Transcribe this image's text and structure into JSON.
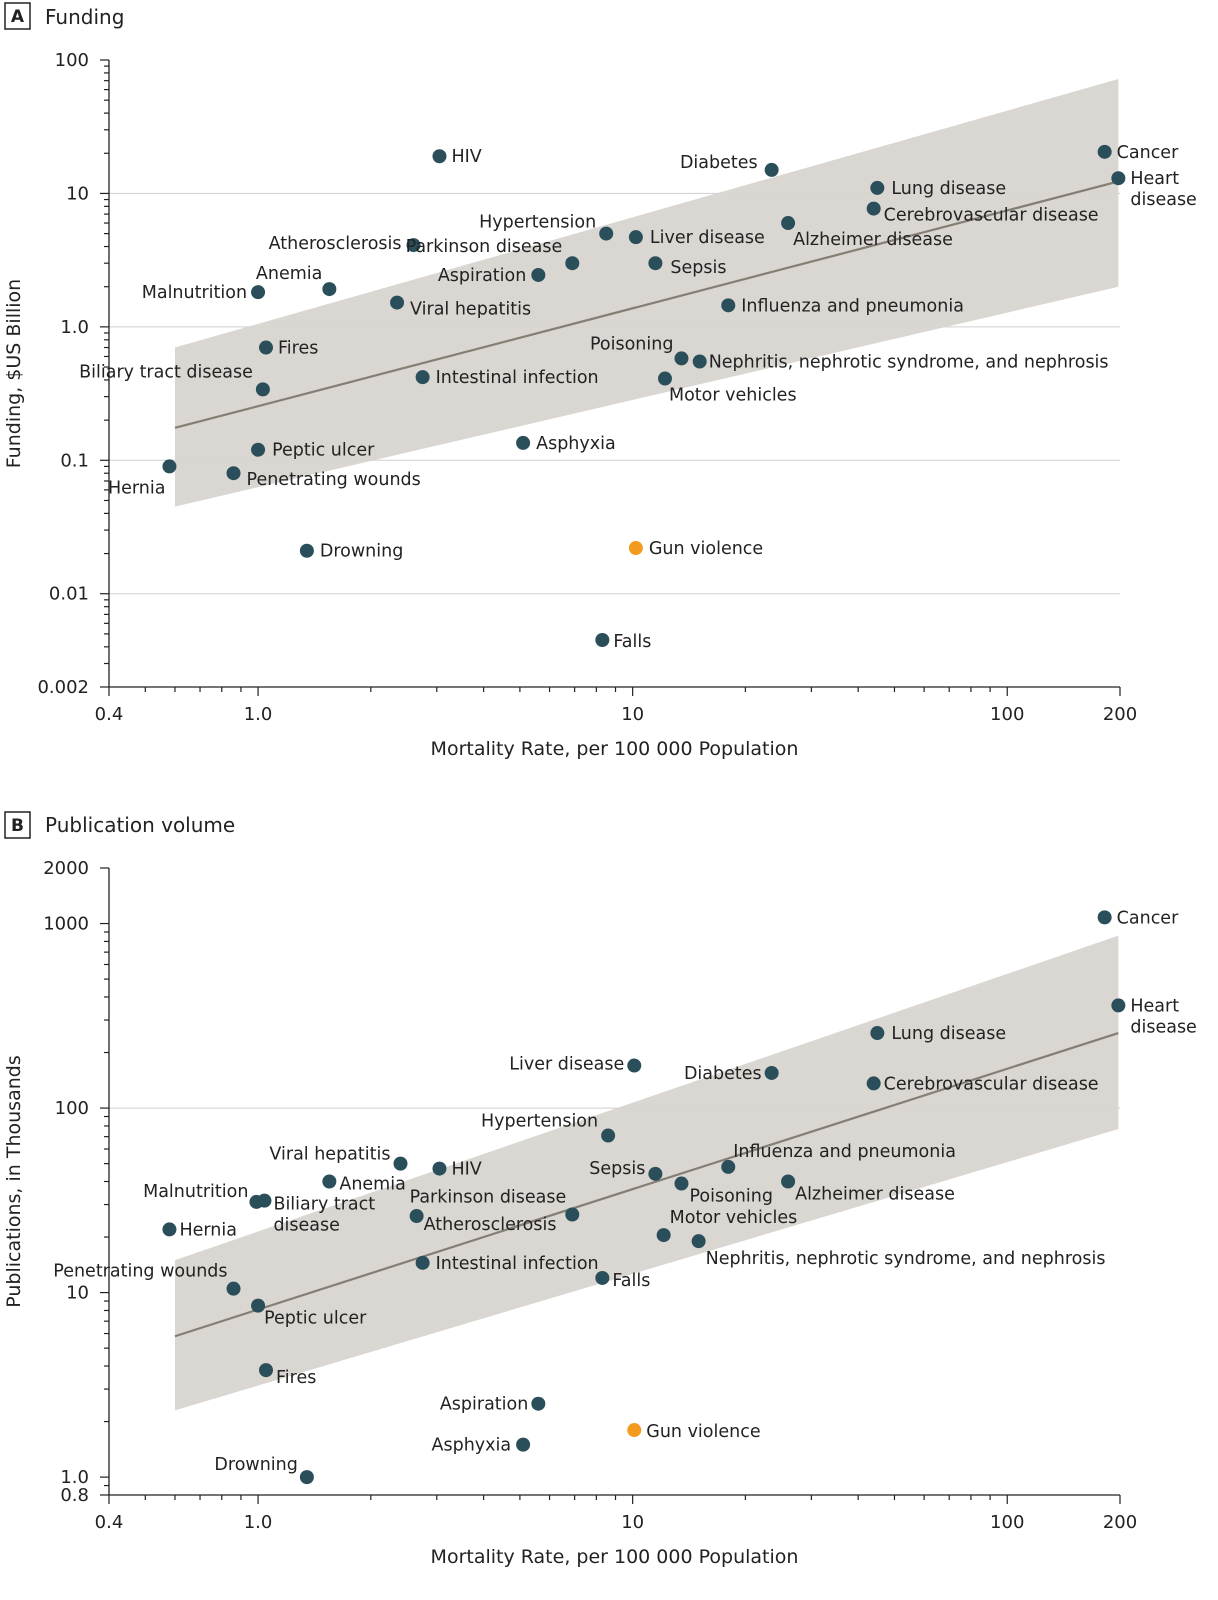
{
  "colors": {
    "point": "#2a4e5a",
    "highlight": "#f39b1f",
    "trend": "#857e74",
    "band": "#d8d4cf",
    "grid": "#cfcfcf",
    "axis": "#222222"
  },
  "chart_data": [
    {
      "type": "scatter",
      "panel_letter": "A",
      "title": "Funding",
      "xlabel": "Mortality Rate, per 100 000 Population",
      "ylabel": "Funding, $US Billion",
      "x_scale": "log",
      "y_scale": "log",
      "xlim": [
        0.4,
        200
      ],
      "ylim": [
        0.002,
        100
      ],
      "x_ticks": [
        0.4,
        1,
        10,
        100,
        200
      ],
      "x_tick_labels": [
        "0.4",
        "1.0",
        "10",
        "100",
        "200"
      ],
      "y_ticks": [
        0.002,
        0.01,
        0.1,
        1,
        10,
        100
      ],
      "y_tick_labels": [
        "0.002",
        "0.01",
        "0.1",
        "1.0",
        "10",
        "100"
      ],
      "y_gridlines": [
        0.01,
        0.1,
        1,
        10
      ],
      "trend": {
        "x": [
          0.6,
          198
        ],
        "y": [
          0.175,
          12.3
        ]
      },
      "band": {
        "x": [
          0.6,
          198
        ],
        "upper": [
          0.7,
          72
        ],
        "lower": [
          0.045,
          2.0
        ]
      },
      "points": [
        {
          "label": "Cancer",
          "x": 182,
          "y": 20.5,
          "anchor": "start"
        },
        {
          "label": "Heart disease",
          "label_lines": [
            "Heart",
            "disease"
          ],
          "x": 198,
          "y": 13,
          "anchor": "start"
        },
        {
          "label": "HIV",
          "x": 3.05,
          "y": 19,
          "anchor": "start"
        },
        {
          "label": "Diabetes",
          "x": 23.5,
          "y": 15,
          "anchor": "end"
        },
        {
          "label": "Lung disease",
          "x": 45,
          "y": 11,
          "anchor": "start"
        },
        {
          "label": "Cerebrovascular disease",
          "x": 44,
          "y": 7.7,
          "anchor": "start"
        },
        {
          "label": "Alzheimer disease",
          "x": 26,
          "y": 6.0,
          "anchor": "start"
        },
        {
          "label": "Hypertension",
          "x": 8.5,
          "y": 5.0,
          "anchor": "end"
        },
        {
          "label": "Liver disease",
          "x": 10.2,
          "y": 4.7,
          "anchor": "start"
        },
        {
          "label": "Atherosclerosis",
          "x": 2.6,
          "y": 4.1,
          "anchor": "end"
        },
        {
          "label": "Parkinson disease",
          "x": 6.9,
          "y": 3.0,
          "anchor": "end"
        },
        {
          "label": "Sepsis",
          "x": 11.5,
          "y": 3.0,
          "anchor": "start"
        },
        {
          "label": "Aspiration",
          "x": 5.6,
          "y": 2.45,
          "anchor": "end"
        },
        {
          "label": "Anemia",
          "x": 1.55,
          "y": 1.92,
          "anchor": "end"
        },
        {
          "label": "Malnutrition",
          "x": 1.0,
          "y": 1.82,
          "anchor": "end"
        },
        {
          "label": "Viral hepatitis",
          "x": 2.35,
          "y": 1.52,
          "anchor": "start"
        },
        {
          "label": "Influenza and pneumonia",
          "x": 18,
          "y": 1.45,
          "anchor": "start"
        },
        {
          "label": "Fires",
          "x": 1.05,
          "y": 0.7,
          "anchor": "start"
        },
        {
          "label": "Poisoning",
          "x": 13.5,
          "y": 0.58,
          "anchor": "end"
        },
        {
          "label": "Nephritis, nephrotic syndrome, and nephrosis",
          "x": 15.1,
          "y": 0.55,
          "anchor": "start"
        },
        {
          "label": "Intestinal infection",
          "x": 2.75,
          "y": 0.42,
          "anchor": "start"
        },
        {
          "label": "Motor vehicles",
          "x": 12.2,
          "y": 0.41,
          "anchor": "start"
        },
        {
          "label": "Biliary tract disease",
          "x": 1.03,
          "y": 0.34,
          "anchor": "end"
        },
        {
          "label": "Asphyxia",
          "x": 5.1,
          "y": 0.135,
          "anchor": "start"
        },
        {
          "label": "Peptic ulcer",
          "x": 1.0,
          "y": 0.12,
          "anchor": "start"
        },
        {
          "label": "Hernia",
          "x": 0.58,
          "y": 0.09,
          "anchor": "end"
        },
        {
          "label": "Penetrating wounds",
          "x": 0.86,
          "y": 0.08,
          "anchor": "start"
        },
        {
          "label": "Drowning",
          "x": 1.35,
          "y": 0.021,
          "anchor": "start"
        },
        {
          "label": "Gun violence",
          "x": 10.2,
          "y": 0.022,
          "anchor": "start",
          "highlight": true
        },
        {
          "label": "Falls",
          "x": 8.3,
          "y": 0.0045,
          "anchor": "start"
        }
      ]
    },
    {
      "type": "scatter",
      "panel_letter": "B",
      "title": "Publication volume",
      "xlabel": "Mortality Rate, per 100 000 Population",
      "ylabel": "Publications, in Thousands",
      "x_scale": "log",
      "y_scale": "log",
      "xlim": [
        0.4,
        200
      ],
      "ylim": [
        0.8,
        2000
      ],
      "x_ticks": [
        0.4,
        1,
        10,
        100,
        200
      ],
      "x_tick_labels": [
        "0.4",
        "1.0",
        "10",
        "100",
        "200"
      ],
      "y_ticks": [
        0.8,
        1,
        10,
        100,
        1000,
        2000
      ],
      "y_tick_labels": [
        "0.8",
        "1.0",
        "10",
        "100",
        "1000",
        "2000"
      ],
      "y_gridlines": [
        100
      ],
      "trend": {
        "x": [
          0.6,
          198
        ],
        "y": [
          5.8,
          255
        ]
      },
      "band": {
        "x": [
          0.6,
          198
        ],
        "upper": [
          15,
          860
        ],
        "lower": [
          2.3,
          77
        ]
      },
      "points": [
        {
          "label": "Cancer",
          "x": 182,
          "y": 1080,
          "anchor": "start"
        },
        {
          "label": "Heart disease",
          "label_lines": [
            "Heart",
            "disease"
          ],
          "x": 198,
          "y": 360,
          "anchor": "start"
        },
        {
          "label": "Lung disease",
          "x": 45,
          "y": 255,
          "anchor": "start"
        },
        {
          "label": "Liver disease",
          "x": 10.1,
          "y": 170,
          "anchor": "end"
        },
        {
          "label": "Diabetes",
          "x": 23.5,
          "y": 155,
          "anchor": "end"
        },
        {
          "label": "Cerebrovascular disease",
          "x": 44,
          "y": 136,
          "anchor": "start"
        },
        {
          "label": "Hypertension",
          "x": 8.6,
          "y": 71,
          "anchor": "end"
        },
        {
          "label": "Viral hepatitis",
          "x": 2.4,
          "y": 50,
          "anchor": "end"
        },
        {
          "label": "Influenza and pneumonia",
          "x": 18,
          "y": 48,
          "anchor": "start"
        },
        {
          "label": "HIV",
          "x": 3.05,
          "y": 47,
          "anchor": "start"
        },
        {
          "label": "Sepsis",
          "x": 11.5,
          "y": 44,
          "anchor": "end"
        },
        {
          "label": "Anemia",
          "x": 1.55,
          "y": 40,
          "anchor": "start"
        },
        {
          "label": "Alzheimer disease",
          "x": 26,
          "y": 40,
          "anchor": "start"
        },
        {
          "label": "Poisoning",
          "x": 13.5,
          "y": 39,
          "anchor": "start"
        },
        {
          "label": "Malnutrition",
          "x": 0.99,
          "y": 31,
          "anchor": "end"
        },
        {
          "label": "Biliary tract disease",
          "label_lines": [
            "Biliary tract",
            "disease"
          ],
          "x": 1.04,
          "y": 31.5,
          "anchor": "start"
        },
        {
          "label": "Parkinson disease",
          "x": 6.9,
          "y": 26.5,
          "anchor": "end"
        },
        {
          "label": "Atherosclerosis",
          "x": 2.65,
          "y": 26,
          "anchor": "start"
        },
        {
          "label": "Hernia",
          "x": 0.58,
          "y": 22,
          "anchor": "start"
        },
        {
          "label": "Motor vehicles",
          "x": 12.1,
          "y": 20.5,
          "anchor": "start"
        },
        {
          "label": "Nephritis, nephrotic syndrome, and nephrosis",
          "x": 15,
          "y": 19,
          "anchor": "start"
        },
        {
          "label": "Intestinal infection",
          "x": 2.75,
          "y": 14.5,
          "anchor": "start"
        },
        {
          "label": "Falls",
          "x": 8.3,
          "y": 12,
          "anchor": "start"
        },
        {
          "label": "Penetrating wounds",
          "x": 0.86,
          "y": 10.5,
          "anchor": "end"
        },
        {
          "label": "Peptic ulcer",
          "x": 1.0,
          "y": 8.5,
          "anchor": "start"
        },
        {
          "label": "Fires",
          "x": 1.05,
          "y": 3.8,
          "anchor": "start"
        },
        {
          "label": "Aspiration",
          "x": 5.6,
          "y": 2.5,
          "anchor": "end"
        },
        {
          "label": "Gun violence",
          "x": 10.1,
          "y": 1.8,
          "anchor": "start",
          "highlight": true
        },
        {
          "label": "Asphyxia",
          "x": 5.1,
          "y": 1.5,
          "anchor": "end"
        },
        {
          "label": "Drowning",
          "x": 1.35,
          "y": 1.0,
          "anchor": "end"
        }
      ]
    }
  ]
}
